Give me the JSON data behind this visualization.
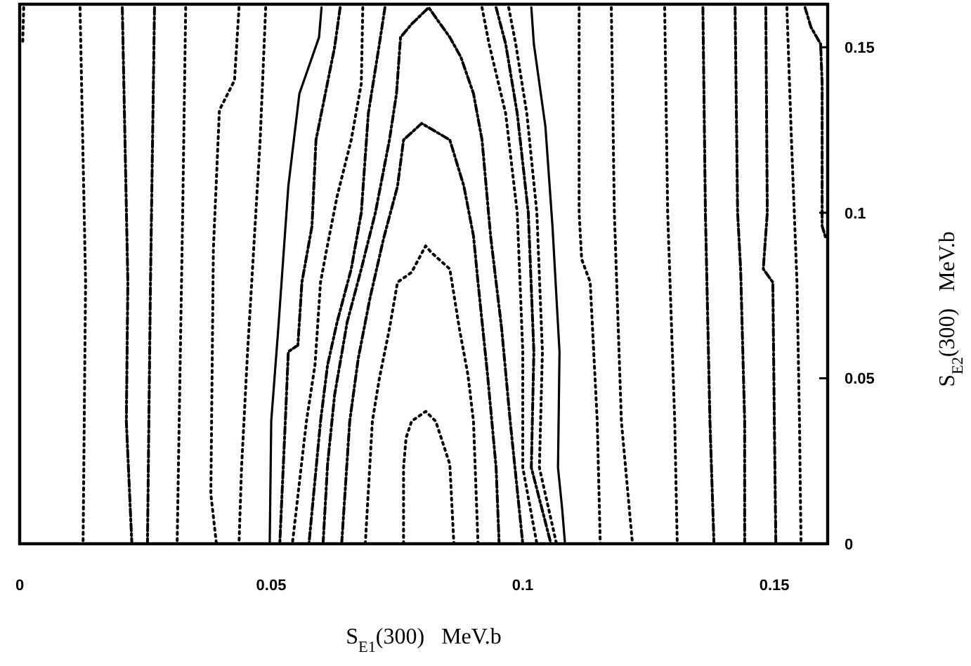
{
  "chart_data": {
    "type": "line",
    "xlabel": "S$_{E1}$(300)   MeV.b",
    "ylabel": "S$_{E2}$(300)   MeV.b",
    "xlim": [
      0,
      0.1606
    ],
    "ylim": [
      0,
      0.163
    ],
    "xticks": [
      0,
      0.05,
      0.1,
      0.15
    ],
    "yticks": [
      0,
      0.05,
      0.1,
      0.15
    ],
    "grid": false,
    "marker": "none",
    "series": [
      {
        "color": "#000000",
        "line_style": "dotted",
        "x": [
          0.0008,
          0.0006
        ],
        "values": [
          0.162,
          0.151
        ]
      },
      {
        "color": "#000000",
        "line_style": "dotted",
        "x": [
          0.012,
          0.0131,
          0.0126
        ],
        "values": [
          0.162,
          0.079,
          0
        ]
      },
      {
        "color": "#000000",
        "line_style": "dashed",
        "x": [
          0.0204,
          0.0215,
          0.0212,
          0.0223
        ],
        "values": [
          0.162,
          0.079,
          0.037,
          0
        ]
      },
      {
        "color": "#000000",
        "line_style": "dashed",
        "x": [
          0.0268,
          0.026,
          0.0254
        ],
        "values": [
          0.162,
          0.079,
          0
        ]
      },
      {
        "color": "#000000",
        "line_style": "dotted",
        "x": [
          0.033,
          0.0324,
          0.0313
        ],
        "values": [
          0.162,
          0.1,
          0
        ]
      },
      {
        "color": "#000000",
        "line_style": "dotted",
        "x": [
          0.0436,
          0.0427,
          0.0397,
          0.0385,
          0.038,
          0.0391
        ],
        "values": [
          0.162,
          0.14,
          0.131,
          0.089,
          0.015,
          0
        ]
      },
      {
        "color": "#000000",
        "line_style": "dotted",
        "x": [
          0.0489,
          0.0478,
          0.0453,
          0.0441,
          0.0436
        ],
        "values": [
          0.162,
          0.122,
          0.058,
          0.023,
          0
        ]
      },
      {
        "color": "#000000",
        "line_style": "solid",
        "x": [
          0.06,
          0.0595,
          0.0556,
          0.0534,
          0.0514,
          0.05,
          0.0497
        ],
        "values": [
          0.162,
          0.153,
          0.136,
          0.108,
          0.065,
          0.037,
          0
        ]
      },
      {
        "color": "#000000",
        "line_style": "dashed",
        "x": [
          0.0637,
          0.0626,
          0.0589,
          0.0581,
          0.0561,
          0.0553,
          0.0534,
          0.0528,
          0.0517
        ],
        "values": [
          0.162,
          0.15,
          0.122,
          0.096,
          0.079,
          0.06,
          0.058,
          0.037,
          0
        ]
      },
      {
        "color": "#000000",
        "line_style": "dotted",
        "x": [
          0.0682,
          0.0679,
          0.0659,
          0.0631,
          0.0609,
          0.0598,
          0.0587,
          0.057,
          0.0542
        ],
        "values": [
          0.162,
          0.139,
          0.122,
          0.105,
          0.088,
          0.079,
          0.054,
          0.037,
          0
        ]
      },
      {
        "color": "#000000",
        "line_style": "dashed",
        "x": [
          0.0726,
          0.0715,
          0.0693,
          0.0679,
          0.0659,
          0.0631,
          0.0612,
          0.0598,
          0.0575
        ],
        "values": [
          0.162,
          0.151,
          0.13,
          0.1,
          0.083,
          0.067,
          0.054,
          0.037,
          0
        ]
      },
      {
        "color": "#000000",
        "line_style": "dashed",
        "x": [
          0.0603,
          0.0612,
          0.0626,
          0.0651,
          0.0679,
          0.0707,
          0.0735,
          0.0749,
          0.0757,
          0.0779,
          0.0813,
          0.0855,
          0.0877,
          0.0902,
          0.0919,
          0.0936,
          0.0958,
          0.0975,
          0.1
        ],
        "values": [
          0,
          0.024,
          0.045,
          0.067,
          0.083,
          0.1,
          0.122,
          0.136,
          0.153,
          0.157,
          0.162,
          0.153,
          0.147,
          0.136,
          0.122,
          0.093,
          0.065,
          0.037,
          0
        ]
      },
      {
        "color": "#000000",
        "line_style": "dashed",
        "x": [
          0.064,
          0.0656,
          0.0673,
          0.0696,
          0.0723,
          0.0751,
          0.0763,
          0.0799,
          0.0855,
          0.0883,
          0.0902,
          0.0911,
          0.093,
          0.0947,
          0.0953
        ],
        "values": [
          0,
          0.037,
          0.056,
          0.074,
          0.092,
          0.108,
          0.122,
          0.127,
          0.122,
          0.108,
          0.093,
          0.079,
          0.051,
          0.023,
          0
        ]
      },
      {
        "color": "#000000",
        "line_style": "dotted",
        "x": [
          0.0687,
          0.0701,
          0.0715,
          0.0735,
          0.0751,
          0.0779,
          0.0807,
          0.0818,
          0.0855,
          0.0874,
          0.0891,
          0.0902,
          0.0911
        ],
        "values": [
          0,
          0.037,
          0.05,
          0.065,
          0.079,
          0.082,
          0.09,
          0.088,
          0.083,
          0.065,
          0.051,
          0.037,
          0
        ]
      },
      {
        "color": "#000000",
        "line_style": "dotted",
        "x": [
          0.0763,
          0.0763,
          0.0768,
          0.0779,
          0.0807,
          0.0827,
          0.0855,
          0.0863
        ],
        "values": [
          0,
          0.023,
          0.032,
          0.037,
          0.04,
          0.037,
          0.024,
          0
        ]
      },
      {
        "color": "#000000",
        "line_style": "dotted",
        "x": [
          0.0919,
          0.0933,
          0.0966,
          0.0989,
          0.1,
          0.1,
          0.1028
        ],
        "values": [
          0.162,
          0.151,
          0.13,
          0.1,
          0.058,
          0.023,
          0
        ]
      },
      {
        "color": "#000000",
        "line_style": "dashed",
        "x": [
          0.0947,
          0.0966,
          0.0989,
          0.1011,
          0.1022,
          0.1017,
          0.1056
        ],
        "values": [
          0.162,
          0.151,
          0.13,
          0.1,
          0.058,
          0.023,
          0
        ]
      },
      {
        "color": "#000000",
        "line_style": "dotted",
        "x": [
          0.0972,
          0.0986,
          0.1008,
          0.1028,
          0.1039,
          0.1033,
          0.1067
        ],
        "values": [
          0.162,
          0.151,
          0.13,
          0.1,
          0.058,
          0.023,
          0
        ]
      },
      {
        "color": "#000000",
        "line_style": "solid",
        "x": [
          0.1017,
          0.1022,
          0.1045,
          0.1059,
          0.1073,
          0.107,
          0.1078,
          0.1084
        ],
        "values": [
          0.162,
          0.151,
          0.126,
          0.096,
          0.058,
          0.023,
          0.011,
          0
        ]
      },
      {
        "color": "#000000",
        "line_style": "dotted",
        "x": [
          0.1112,
          0.1112,
          0.1117,
          0.1134,
          0.1148,
          0.1154
        ],
        "values": [
          0.162,
          0.1,
          0.086,
          0.079,
          0.037,
          0
        ]
      },
      {
        "color": "#000000",
        "line_style": "dotted",
        "x": [
          0.1176,
          0.1182,
          0.1196,
          0.1218
        ],
        "values": [
          0.162,
          0.1,
          0.037,
          0
        ]
      },
      {
        "color": "#000000",
        "line_style": "dotted",
        "x": [
          0.1282,
          0.1288,
          0.1302,
          0.1307
        ],
        "values": [
          0.162,
          0.1,
          0.037,
          0
        ]
      },
      {
        "color": "#000000",
        "line_style": "dashed",
        "x": [
          0.1358,
          0.1363,
          0.1372,
          0.138
        ],
        "values": [
          0.162,
          0.1,
          0.037,
          0
        ]
      },
      {
        "color": "#000000",
        "line_style": "dashed",
        "x": [
          0.1422,
          0.1427,
          0.1433,
          0.1441,
          0.1441
        ],
        "values": [
          0.162,
          0.1,
          0.083,
          0.037,
          0
        ]
      },
      {
        "color": "#000000",
        "line_style": "dashed",
        "x": [
          0.1483,
          0.1486,
          0.1478,
          0.1497,
          0.15,
          0.1503
        ],
        "values": [
          0.162,
          0.1,
          0.083,
          0.079,
          0.037,
          0
        ]
      },
      {
        "color": "#000000",
        "line_style": "dotted",
        "x": [
          0.1525,
          0.1534,
          0.1545,
          0.155,
          0.1553
        ],
        "values": [
          0.162,
          0.122,
          0.079,
          0.037,
          0
        ]
      },
      {
        "color": "#000000",
        "line_style": "dashed",
        "x": [
          0.1561,
          0.1573,
          0.1592,
          0.1595,
          0.1595,
          0.1603
        ],
        "values": [
          0.162,
          0.156,
          0.151,
          0.139,
          0.096,
          0.092
        ]
      }
    ]
  }
}
